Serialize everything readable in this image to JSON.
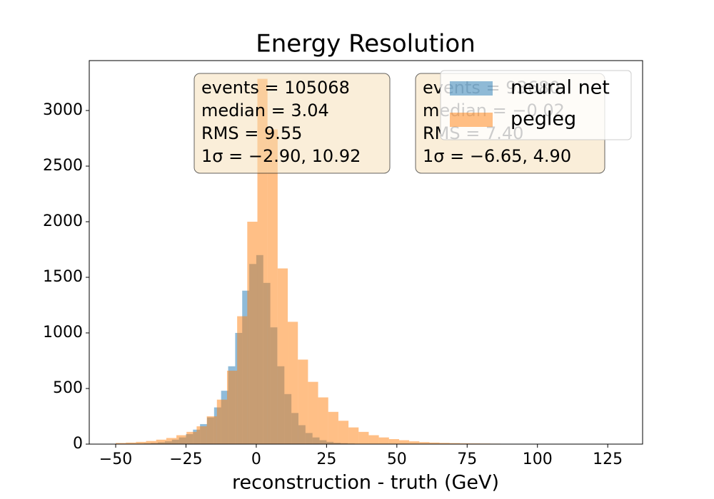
{
  "chart_data": {
    "type": "histogram",
    "title": "Energy Resolution",
    "x_label": "reconstruction - truth (GeV)",
    "xlim": [
      -59.4,
      137.4
    ],
    "ylim": [
      0,
      3449
    ],
    "xticks": [
      {
        "value": -50,
        "label": "−50"
      },
      {
        "value": -25,
        "label": "−25"
      },
      0,
      25,
      50,
      75,
      100,
      125
    ],
    "yticks": [
      0,
      500,
      1000,
      1500,
      2000,
      2500,
      3000
    ],
    "legend": "upper right",
    "series": [
      {
        "name": "neural net",
        "color": "#1f77b4",
        "bins": [
          -50,
          -47.5,
          -45,
          -42.5,
          -40,
          -37.5,
          -35,
          -32.5,
          -30,
          -27.5,
          -25,
          -22.5,
          -20,
          -17.5,
          -15,
          -12.5,
          -10,
          -7.5,
          -5,
          -2.5,
          0,
          2.5,
          5,
          7.5,
          10,
          12.5,
          15,
          17.5,
          20,
          22.5,
          25,
          27.5,
          30,
          32.5,
          35,
          37.5,
          40,
          42.5,
          45,
          47.5,
          50,
          52.5,
          55,
          57.5,
          60
        ],
        "values": [
          1,
          2,
          3,
          4,
          6,
          10,
          16,
          25,
          40,
          60,
          90,
          130,
          180,
          240,
          330,
          480,
          700,
          1000,
          1380,
          1620,
          1700,
          1450,
          1050,
          700,
          450,
          280,
          170,
          100,
          60,
          35,
          20,
          12,
          8,
          5,
          3,
          2,
          1,
          1,
          1,
          0,
          0,
          0,
          0,
          0
        ]
      },
      {
        "name": "pegleg",
        "color": "#ff7f0e",
        "bins": [
          -50,
          -46.4,
          -42.8,
          -39.2,
          -35.6,
          -32,
          -28.4,
          -24.8,
          -21.2,
          -17.6,
          -14,
          -10.4,
          -6.8,
          -3.2,
          0.4,
          4,
          7.6,
          11.2,
          14.8,
          18.4,
          22,
          25.6,
          29.2,
          32.8,
          36.4,
          40,
          43.6,
          47.2,
          50.8,
          54.4,
          58,
          61.6,
          65.2,
          68.8,
          72.4,
          76,
          79.6,
          83.2,
          86.8,
          90.4,
          94,
          97.6,
          101.2,
          104.8,
          108.4,
          112,
          115.6,
          119.2,
          122.8,
          126.4,
          130
        ],
        "values": [
          10,
          14,
          20,
          28,
          40,
          55,
          80,
          110,
          160,
          250,
          400,
          660,
          1150,
          2000,
          3285,
          2830,
          1580,
          1100,
          760,
          560,
          420,
          290,
          210,
          150,
          110,
          80,
          60,
          45,
          35,
          25,
          18,
          14,
          11,
          9,
          7,
          6,
          5,
          4,
          3,
          3,
          2,
          2,
          2,
          1,
          1,
          1,
          1,
          1,
          1,
          1
        ]
      }
    ],
    "annotations": [
      [
        "events = 105068",
        "median = 3.04",
        "RMS = 9.55",
        "1σ = −2.90, 10.92"
      ],
      [
        "events = 93680",
        "median = −0.02",
        "RMS = 7.40",
        "1σ = −6.65, 4.90"
      ]
    ]
  }
}
